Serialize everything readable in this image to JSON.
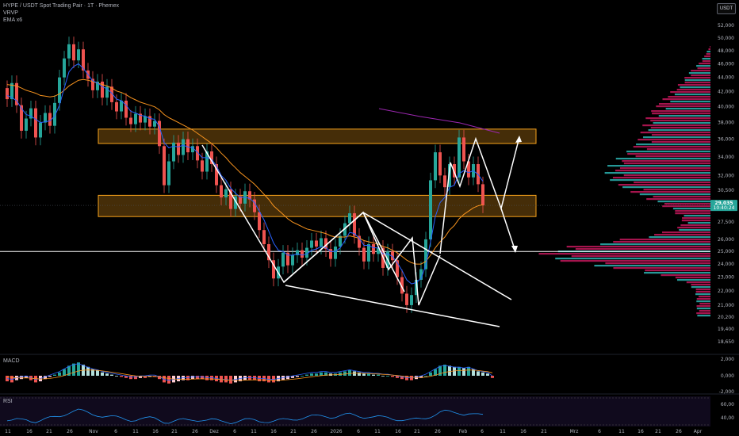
{
  "header": {
    "title": "HYPE / USDT Spot Trading Pair · 1T · Phemex",
    "indicator1": "VRVP",
    "indicator2": "EMA x6"
  },
  "currency_badge": "USDT",
  "panes": {
    "macd_label": "MACD",
    "rsi_label": "RSI"
  },
  "colors": {
    "bull": "#26a69a",
    "bear": "#ef5350",
    "zone": "#f7a21b",
    "ema_fast": "#2962ff",
    "ema_slow": "#f7931e",
    "ema_long": "#9c27b0",
    "price_tag": "#26a69a",
    "volume_up": "#2bb3b1",
    "volume_down": "#c2185b"
  },
  "chart_data": {
    "type": "candlestick",
    "y_axis": {
      "ticks": [
        "52,000",
        "50,000",
        "48,000",
        "46,000",
        "44,000",
        "42,000",
        "40,000",
        "38,000",
        "36,000",
        "34,000",
        "32,000",
        "30,500",
        "27,500",
        "26,000",
        "25,000",
        "24,000",
        "23,000",
        "22,000",
        "21,000",
        "20,200",
        "19,400",
        "18,650"
      ],
      "tick_values": [
        52000,
        50000,
        48000,
        46000,
        44000,
        42000,
        40000,
        38000,
        36000,
        34000,
        32000,
        30500,
        27500,
        26000,
        25000,
        24000,
        23000,
        22000,
        21000,
        20200,
        19400,
        18650
      ],
      "scale": "log"
    },
    "x_axis": {
      "ticks": [
        "11",
        "16",
        "21",
        "26",
        "Nov",
        "6",
        "11",
        "16",
        "21",
        "26",
        "Dez",
        "6",
        "11",
        "16",
        "21",
        "26",
        "2026",
        "6",
        "11",
        "16",
        "21",
        "26",
        "Feb",
        "6",
        "11",
        "16",
        "21",
        "Mrz",
        "6",
        "11",
        "16",
        "21",
        "26",
        "Apr"
      ]
    },
    "last_price": {
      "value": "29,035",
      "countdown": "10:40:24"
    },
    "zones": [
      {
        "from": 35500,
        "to": 37200
      },
      {
        "from": 28000,
        "to": 30000
      }
    ],
    "horizontal_line": 25000,
    "candles": [
      [
        42500,
        41000
      ],
      [
        41000,
        43200
      ],
      [
        43200,
        40200
      ],
      [
        40200,
        37000
      ],
      [
        37000,
        38500
      ],
      [
        38500,
        39800
      ],
      [
        39800,
        36200
      ],
      [
        36200,
        38000
      ],
      [
        38000,
        39200
      ],
      [
        39200,
        37600
      ],
      [
        37600,
        40500
      ],
      [
        40500,
        44000
      ],
      [
        44000,
        46800
      ],
      [
        46800,
        49000
      ],
      [
        49000,
        46500
      ],
      [
        46500,
        48200
      ],
      [
        48200,
        45000
      ],
      [
        45000,
        43800
      ],
      [
        43800,
        42200
      ],
      [
        42200,
        43400
      ],
      [
        43400,
        41200
      ],
      [
        41200,
        42700
      ],
      [
        42700,
        40600
      ],
      [
        40600,
        39400
      ],
      [
        39400,
        40800
      ],
      [
        40800,
        38600
      ],
      [
        38600,
        37800
      ],
      [
        37800,
        39100
      ],
      [
        39100,
        38000
      ],
      [
        38000,
        38800
      ],
      [
        38800,
        37500
      ],
      [
        37500,
        38200
      ],
      [
        38200,
        35200
      ],
      [
        35200,
        31000
      ],
      [
        31000,
        33500
      ],
      [
        33500,
        35600
      ],
      [
        35600,
        34200
      ],
      [
        34200,
        36000
      ],
      [
        36000,
        34500
      ],
      [
        34500,
        35200
      ],
      [
        35200,
        33600
      ],
      [
        33600,
        32400
      ],
      [
        32400,
        34600
      ],
      [
        34600,
        33200
      ],
      [
        33200,
        31000
      ],
      [
        31000,
        29800
      ],
      [
        29800,
        30600
      ],
      [
        30600,
        28700
      ],
      [
        28700,
        29900
      ],
      [
        29900,
        29200
      ],
      [
        29200,
        30400
      ],
      [
        30400,
        29600
      ],
      [
        29600,
        28400
      ],
      [
        28400,
        26800
      ],
      [
        26800,
        25600
      ],
      [
        25600,
        24300
      ],
      [
        24300,
        22900
      ],
      [
        22900,
        23800
      ],
      [
        23800,
        24900
      ],
      [
        24900,
        23900
      ],
      [
        23900,
        24700
      ],
      [
        24700,
        25100
      ],
      [
        25100,
        24500
      ],
      [
        24500,
        25300
      ],
      [
        25300,
        25900
      ],
      [
        25900,
        25400
      ],
      [
        25400,
        26100
      ],
      [
        26100,
        25200
      ],
      [
        25200,
        24400
      ],
      [
        24400,
        25400
      ],
      [
        25400,
        26300
      ],
      [
        26300,
        27400
      ],
      [
        27400,
        28300
      ],
      [
        28300,
        26300
      ],
      [
        26300,
        25300
      ],
      [
        25300,
        24200
      ],
      [
        24200,
        25600
      ],
      [
        25600,
        24800
      ],
      [
        24800,
        25300
      ],
      [
        25300,
        23700
      ],
      [
        23700,
        25000
      ],
      [
        25000,
        24300
      ],
      [
        24300,
        23000
      ],
      [
        23000,
        21800
      ],
      [
        21800,
        21000
      ],
      [
        21000,
        21700
      ],
      [
        21700,
        22800
      ],
      [
        22800,
        23600
      ],
      [
        23600,
        26000
      ],
      [
        26000,
        31500
      ],
      [
        31500,
        34500
      ],
      [
        34500,
        32000
      ],
      [
        32000,
        30800
      ],
      [
        30800,
        33200
      ],
      [
        33200,
        31800
      ],
      [
        31800,
        36200
      ],
      [
        36200,
        33500
      ],
      [
        33500,
        31800
      ],
      [
        31800,
        33200
      ],
      [
        33200,
        31100
      ],
      [
        31100,
        29035
      ]
    ],
    "ema_fast_path": [
      41500,
      41200,
      40800,
      39800,
      39000,
      38800,
      38400,
      38000,
      38100,
      38200,
      38800,
      40200,
      42500,
      44800,
      45600,
      46000,
      45300,
      44400,
      43500,
      43200,
      42700,
      42400,
      41800,
      41000,
      40800,
      40200,
      39400,
      39200,
      38900,
      38800,
      38500,
      38400,
      37500,
      35600,
      35000,
      35200,
      35100,
      35300,
      35100,
      35000,
      34500,
      33900,
      33900,
      33700,
      33000,
      32000,
      31500,
      30700,
      30200,
      29800,
      29800,
      29700,
      29300,
      28500,
      27700,
      26700,
      25700,
      25100,
      25000,
      24700,
      24700,
      24800,
      24700,
      24800,
      25100,
      25200,
      25400,
      25300,
      25000,
      25000,
      25300,
      25900,
      26600,
      26500,
      26100,
      25500,
      25500,
      25300,
      25300,
      24800,
      24800,
      24600,
      24100,
      23500,
      22800,
      22500,
      22600,
      22900,
      23900,
      25800,
      28000,
      29300,
      29800,
      30800,
      31000,
      32200,
      32500,
      32300,
      32500,
      32100,
      31400
    ],
    "ema_slow_path": [
      43000,
      42900,
      42800,
      42500,
      42200,
      42000,
      41800,
      41500,
      41400,
      41300,
      41400,
      41700,
      42200,
      42800,
      43200,
      43600,
      43700,
      43600,
      43400,
      43200,
      43000,
      42800,
      42500,
      42100,
      41900,
      41600,
      41200,
      40900,
      40600,
      40400,
      40200,
      40000,
      39600,
      39000,
      38600,
      38300,
      38000,
      37700,
      37400,
      37100,
      36700,
      36300,
      35900,
      35500,
      35000,
      34400,
      33900,
      33300,
      32800,
      32300,
      31900,
      31500,
      31100,
      30600,
      30100,
      29600,
      29000,
      28600,
      28200,
      27800,
      27500,
      27300,
      27100,
      26900,
      26800,
      26700,
      26600,
      26500,
      26300,
      26200,
      26200,
      26200,
      26300,
      26200,
      26100,
      25900,
      25800,
      25700,
      25600,
      25400,
      25300,
      25100,
      24900,
      24600,
      24300,
      24100,
      24000,
      24000,
      24200,
      24700,
      25300,
      25800,
      26200,
      26800,
      27200,
      27800,
      28200,
      28500,
      28800,
      29000,
      29100
    ]
  }
}
